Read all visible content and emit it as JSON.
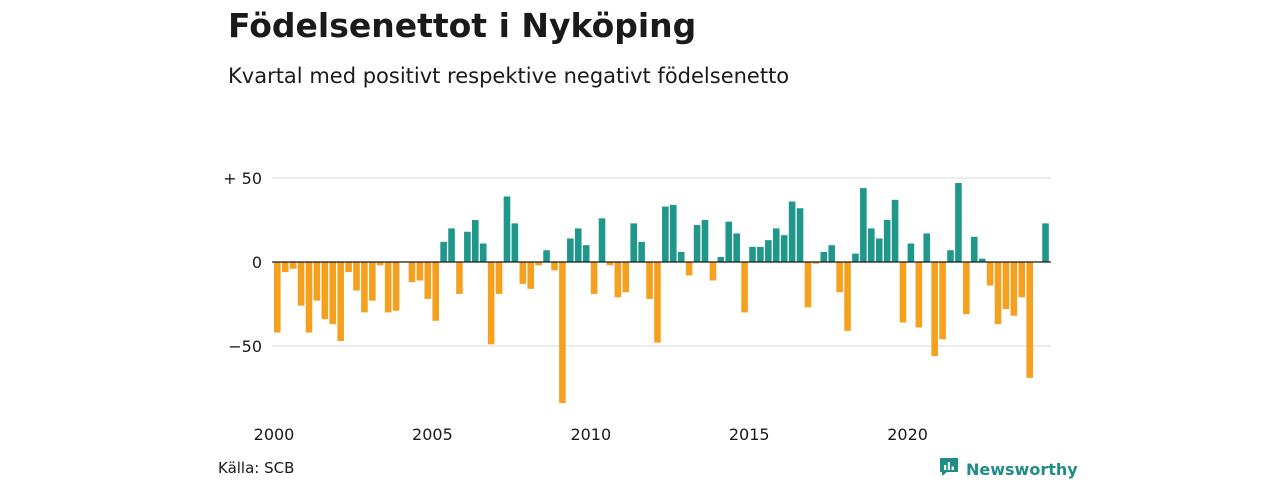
{
  "title": "Födelsenettot i Nyköping",
  "subtitle": "Kvartal med positivt respektive negativt födelsenetto",
  "source": "Källa: SCB",
  "brand": "Newsworthy",
  "icons": {
    "brand": "newsworthy-logo-icon"
  },
  "colors": {
    "positive": "#1f978a",
    "negative": "#f5a11f",
    "grid": "#d9d9d9",
    "brand": "#1f8c85"
  },
  "chart_data": {
    "type": "bar",
    "title": "Födelsenettot i Nyköping",
    "subtitle": "Kvartal med positivt respektive negativt födelsenetto",
    "start": "2000 Q1",
    "frequency": "quarterly",
    "ylim": [
      -84,
      52
    ],
    "y_ticks": [
      -50,
      0,
      50
    ],
    "y_tick_labels": [
      "−50",
      "0",
      "+ 50"
    ],
    "x_ticks": [
      "2000",
      "2005",
      "2010",
      "2015",
      "2020"
    ],
    "grid": true,
    "values": [
      -42,
      -6,
      -4,
      -26,
      -42,
      -23,
      -34,
      -37,
      -47,
      -6,
      -17,
      -30,
      -23,
      -2,
      -30,
      -29,
      0,
      -12,
      -11,
      -22,
      -35,
      12,
      20,
      -19,
      18,
      25,
      11,
      -49,
      -19,
      39,
      23,
      -13,
      -16,
      -2,
      7,
      -5,
      -84,
      14,
      20,
      10,
      -19,
      26,
      -2,
      -21,
      -18,
      23,
      12,
      -22,
      -48,
      33,
      34,
      6,
      -8,
      22,
      25,
      -11,
      3,
      24,
      17,
      -30,
      9,
      9,
      13,
      20,
      16,
      36,
      32,
      -27,
      -1,
      6,
      10,
      -18,
      -41,
      5,
      44,
      20,
      14,
      25,
      37,
      -36,
      11,
      -39,
      17,
      -56,
      -46,
      7,
      47,
      -31,
      15,
      2,
      -14,
      -37,
      -28,
      -32,
      -21,
      -69,
      0,
      23
    ]
  }
}
